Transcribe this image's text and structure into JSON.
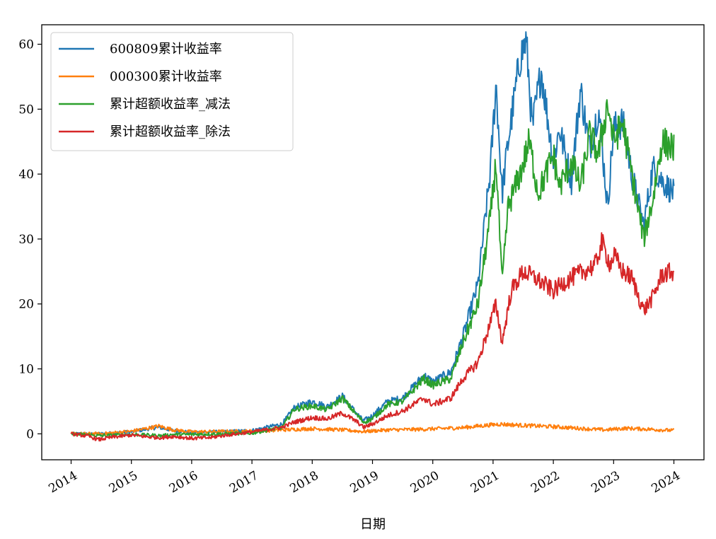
{
  "chart_data": {
    "type": "line",
    "xlabel": "日期",
    "ylabel": "",
    "title": "",
    "xlim": [
      2014.0,
      2024.0
    ],
    "ylim": [
      -4,
      63
    ],
    "x_ticks": [
      2014,
      2015,
      2016,
      2017,
      2018,
      2019,
      2020,
      2021,
      2022,
      2023,
      2024
    ],
    "x_tick_labels": [
      "2014",
      "2015",
      "2016",
      "2017",
      "2018",
      "2019",
      "2020",
      "2021",
      "2022",
      "2023",
      "2024"
    ],
    "y_ticks": [
      0,
      10,
      20,
      30,
      40,
      50,
      60
    ],
    "y_tick_labels": [
      "0",
      "10",
      "20",
      "30",
      "40",
      "50",
      "60"
    ],
    "legend_position": "top-left",
    "grid": false,
    "series": [
      {
        "name": "600809累计收益率",
        "color": "#1f77b4",
        "x": [
          2014.0,
          2014.5,
          2015.0,
          2015.3,
          2015.45,
          2015.7,
          2016.0,
          2016.5,
          2017.0,
          2017.5,
          2017.7,
          2018.0,
          2018.25,
          2018.5,
          2018.75,
          2018.85,
          2019.0,
          2019.25,
          2019.5,
          2019.85,
          2020.0,
          2020.3,
          2020.5,
          2020.75,
          2020.95,
          2021.05,
          2021.15,
          2021.25,
          2021.45,
          2021.55,
          2021.65,
          2021.8,
          2022.0,
          2022.1,
          2022.3,
          2022.45,
          2022.6,
          2022.75,
          2022.9,
          2023.0,
          2023.15,
          2023.3,
          2023.5,
          2023.65,
          2023.8,
          2024.0
        ],
        "values": [
          0,
          0.0,
          0.3,
          0.8,
          1.0,
          0.5,
          0.2,
          0.3,
          0.5,
          1.5,
          4.0,
          5.0,
          4.2,
          5.8,
          3.0,
          2.0,
          2.8,
          5.0,
          5.5,
          9.0,
          8.0,
          9.5,
          15.0,
          23.0,
          40.0,
          54.0,
          37.0,
          45.0,
          58.0,
          60.5,
          47.0,
          56.0,
          42.0,
          47.0,
          39.0,
          53.0,
          44.0,
          50.0,
          35.0,
          47.0,
          48.0,
          40.0,
          32.0,
          41.0,
          39.0,
          37.0
        ]
      },
      {
        "name": "000300累计收益率",
        "color": "#ff7f0e",
        "x": [
          2014.0,
          2014.5,
          2015.0,
          2015.3,
          2015.45,
          2015.7,
          2016.0,
          2016.5,
          2017.0,
          2017.5,
          2018.0,
          2018.5,
          2018.85,
          2019.25,
          2019.85,
          2020.5,
          2021.1,
          2021.5,
          2022.0,
          2022.5,
          2022.85,
          2023.2,
          2023.6,
          2024.0
        ],
        "values": [
          0,
          0.0,
          0.4,
          0.9,
          1.2,
          0.6,
          0.3,
          0.35,
          0.4,
          0.6,
          0.8,
          0.6,
          0.35,
          0.6,
          0.7,
          0.95,
          1.5,
          1.3,
          1.1,
          0.8,
          0.6,
          0.85,
          0.7,
          0.5
        ]
      },
      {
        "name": "累计超额收益率_减法",
        "color": "#2ca02c",
        "x": [
          2014.0,
          2014.5,
          2015.0,
          2015.3,
          2015.5,
          2015.7,
          2016.0,
          2016.5,
          2017.0,
          2017.5,
          2017.7,
          2018.0,
          2018.25,
          2018.5,
          2018.75,
          2018.85,
          2019.0,
          2019.25,
          2019.5,
          2019.85,
          2020.0,
          2020.3,
          2020.5,
          2020.75,
          2020.95,
          2021.05,
          2021.15,
          2021.25,
          2021.45,
          2021.6,
          2021.75,
          2022.0,
          2022.1,
          2022.3,
          2022.45,
          2022.6,
          2022.75,
          2022.9,
          2023.0,
          2023.15,
          2023.3,
          2023.5,
          2023.65,
          2023.8,
          2024.0
        ],
        "values": [
          0,
          -0.3,
          -0.1,
          -0.2,
          -0.3,
          -0.1,
          -0.1,
          0.0,
          0.1,
          1.0,
          3.8,
          4.3,
          3.7,
          5.5,
          2.8,
          1.8,
          2.3,
          4.5,
          5.0,
          8.5,
          7.5,
          8.5,
          14.0,
          20.0,
          33.0,
          42.0,
          23.0,
          35.0,
          40.0,
          45.0,
          37.0,
          43.0,
          38.0,
          42.0,
          38.0,
          46.0,
          43.0,
          51.0,
          45.0,
          48.0,
          40.0,
          30.0,
          36.0,
          45.0,
          44.0
        ]
      },
      {
        "name": "累计超额收益率_除法",
        "color": "#d62728",
        "x": [
          2014.0,
          2014.3,
          2014.45,
          2014.7,
          2015.0,
          2015.3,
          2015.5,
          2015.7,
          2016.0,
          2016.3,
          2016.5,
          2017.0,
          2017.5,
          2017.7,
          2018.0,
          2018.25,
          2018.5,
          2018.75,
          2018.85,
          2019.0,
          2019.25,
          2019.5,
          2019.85,
          2020.0,
          2020.3,
          2020.5,
          2020.75,
          2020.95,
          2021.05,
          2021.15,
          2021.3,
          2021.5,
          2021.7,
          2022.0,
          2022.2,
          2022.5,
          2022.7,
          2022.8,
          2022.95,
          2023.0,
          2023.15,
          2023.3,
          2023.5,
          2023.65,
          2023.8,
          2024.0
        ],
        "values": [
          0,
          -0.4,
          -0.9,
          -0.5,
          -0.2,
          -0.5,
          -0.6,
          -0.4,
          -0.7,
          -0.6,
          -0.3,
          0.3,
          1.0,
          1.8,
          2.5,
          2.3,
          3.2,
          1.8,
          1.0,
          1.5,
          2.8,
          3.5,
          5.5,
          4.5,
          5.5,
          8.5,
          11.0,
          17.0,
          20.0,
          14.0,
          22.0,
          25.0,
          24.0,
          22.0,
          23.5,
          25.0,
          26.0,
          29.5,
          26.0,
          27.5,
          25.0,
          24.0,
          19.0,
          21.0,
          24.5,
          25.0
        ]
      }
    ]
  }
}
